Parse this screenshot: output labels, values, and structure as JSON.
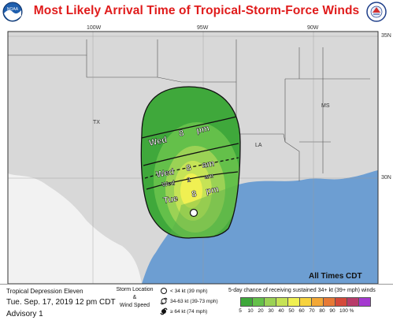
{
  "title": "Most Likely Arrival Time of Tropical-Storm-Force Winds",
  "map": {
    "longitude_labels": [
      "100W",
      "95W",
      "90W"
    ],
    "latitude_labels": [
      "35N",
      "30N"
    ],
    "state_labels": [
      "TX",
      "LA",
      "MS"
    ],
    "arrival_times": [
      {
        "day": "Wed",
        "hour": "8",
        "ampm": "pm"
      },
      {
        "day": "Wed",
        "hour": "8",
        "ampm": "am"
      },
      {
        "day": "Wed",
        "hour": "2",
        "ampm": "am"
      },
      {
        "day": "Tue",
        "hour": "8",
        "ampm": "pm"
      }
    ],
    "all_times_note": "All Times CDT"
  },
  "footer": {
    "storm_name": "Tropical Depression Eleven",
    "issued": "Tue. Sep. 17, 2019  12 pm CDT",
    "advisory": "Advisory 1",
    "legend": {
      "heading_line1": "Storm Location",
      "heading_line2": "&",
      "heading_line3": "Wind Speed",
      "items": [
        {
          "symbol": "open-circle-icon",
          "label": "< 34 kt (39 mph)"
        },
        {
          "symbol": "tropical-storm-icon",
          "label": "34-63 kt (39-73 mph)"
        },
        {
          "symbol": "hurricane-icon",
          "label": "≥ 64 kt (74 mph)"
        }
      ]
    },
    "probability": {
      "title": "5-day chance of receiving sustained 34+ kt (39+ mph) winds",
      "values": [
        "5",
        "10",
        "20",
        "30",
        "40",
        "50",
        "60",
        "70",
        "80",
        "90",
        "100 %"
      ],
      "colors": [
        "#3fa83b",
        "#64c04a",
        "#9bd255",
        "#c6e356",
        "#f0f052",
        "#f7d33e",
        "#f3a837",
        "#e77a36",
        "#d54a3a",
        "#b83c6a",
        "#a53ad0"
      ]
    }
  },
  "colors": {
    "title": "#e01b1b",
    "land": "#d8d8d8",
    "water": "#6d9ed2"
  }
}
